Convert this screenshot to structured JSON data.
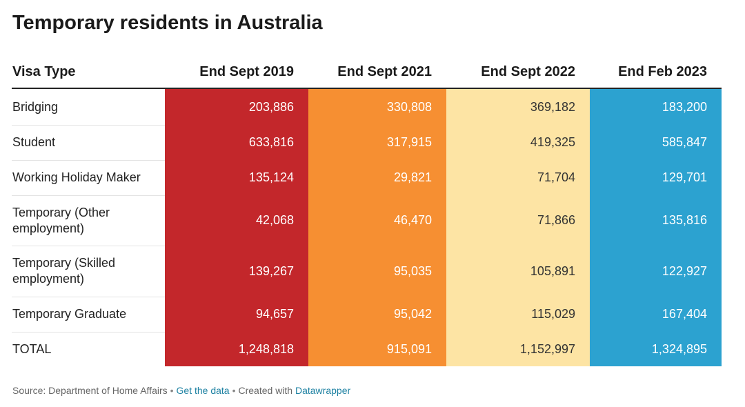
{
  "chart_data": {
    "type": "table",
    "title": "Temporary residents in Australia",
    "row_header": "Visa Type",
    "columns": [
      {
        "label": "End Sept 2019",
        "color": "#c3272b",
        "text_color": "#ffffff"
      },
      {
        "label": "End Sept 2021",
        "color": "#f68f32",
        "text_color": "#ffffff"
      },
      {
        "label": "End Sept 2022",
        "color": "#fde4a4",
        "text_color": "#333333"
      },
      {
        "label": "End Feb 2023",
        "color": "#2ca2d0",
        "text_color": "#ffffff"
      }
    ],
    "rows": [
      {
        "label": "Bridging",
        "values": [
          "203,886",
          "330,808",
          "369,182",
          "183,200"
        ]
      },
      {
        "label": "Student",
        "values": [
          "633,816",
          "317,915",
          "419,325",
          "585,847"
        ]
      },
      {
        "label": "Working Holiday Maker",
        "values": [
          "135,124",
          "29,821",
          "71,704",
          "129,701"
        ]
      },
      {
        "label": "Temporary (Other employment)",
        "values": [
          "42,068",
          "46,470",
          "71,866",
          "135,816"
        ]
      },
      {
        "label": "Temporary (Skilled employment)",
        "values": [
          "139,267",
          "95,035",
          "105,891",
          "122,927"
        ]
      },
      {
        "label": "Temporary Graduate",
        "values": [
          "94,657",
          "95,042",
          "115,029",
          "167,404"
        ]
      },
      {
        "label": "TOTAL",
        "values": [
          "1,248,818",
          "915,091",
          "1,152,997",
          "1,324,895"
        ]
      }
    ]
  },
  "footer": {
    "source": "Source: Department of Home Affairs",
    "separator": "•",
    "get_data": "Get the data",
    "created_with": "Created with",
    "tool": "Datawrapper"
  }
}
